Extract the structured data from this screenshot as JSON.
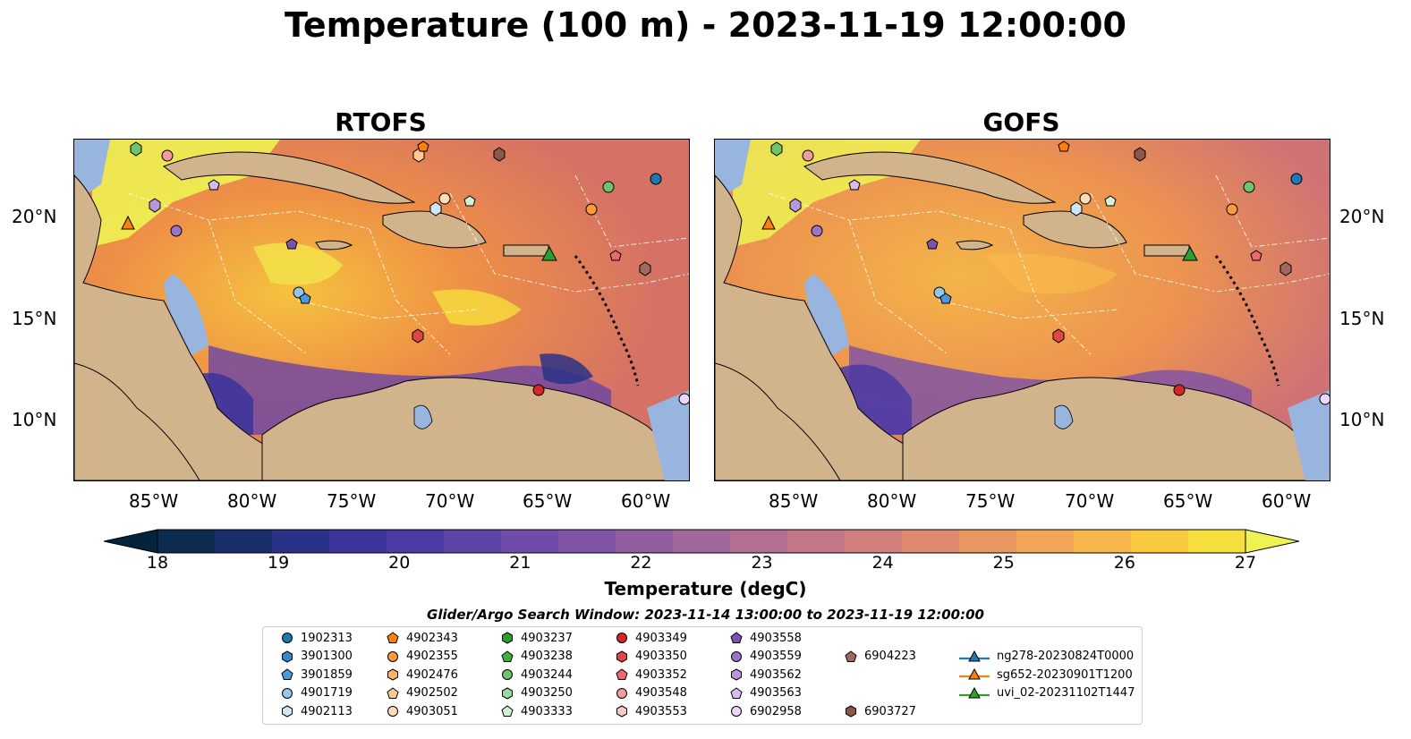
{
  "suptitle": "Temperature (100 m) - 2023-11-19 12:00:00",
  "panels": [
    {
      "title": "RTOFS"
    },
    {
      "title": "GOFS"
    }
  ],
  "lat_labels": [
    "20°N",
    "15°N",
    "10°N"
  ],
  "lon_labels": [
    "85°W",
    "80°W",
    "75°W",
    "70°W",
    "65°W",
    "60°W"
  ],
  "colorbar": {
    "label": "Temperature (degC)",
    "ticks": [
      "18",
      "19",
      "20",
      "21",
      "22",
      "23",
      "24",
      "25",
      "26",
      "27"
    ],
    "min": 18,
    "max": 27,
    "extend": "both",
    "colors": [
      "#03243a",
      "#0d2b4f",
      "#1a2f6a",
      "#2a3287",
      "#3b349b",
      "#4c3aa5",
      "#5e43a8",
      "#6f4ca8",
      "#8055a6",
      "#915ea1",
      "#a2679b",
      "#b36f93",
      "#c37789",
      "#d2807d",
      "#df8a70",
      "#ea9663",
      "#f2a556",
      "#f7b74a",
      "#f9ca40",
      "#f6de3c",
      "#eef252"
    ]
  },
  "legend": {
    "title": "Glider/Argo Search Window: 2023-11-14 13:00:00 to 2023-11-19 12:00:00",
    "entries": [
      {
        "label": "1902313",
        "marker": "circle",
        "color": "#1f77b4"
      },
      {
        "label": "3901300",
        "marker": "hexagon",
        "color": "#3a86c4"
      },
      {
        "label": "3901859",
        "marker": "pentagon",
        "color": "#4a9ad8"
      },
      {
        "label": "4901719",
        "marker": "circle",
        "color": "#95c5ea"
      },
      {
        "label": "4902113",
        "marker": "hexagon",
        "color": "#cfe6f7"
      },
      {
        "label": "4902343",
        "marker": "pentagon",
        "color": "#ff7f0e"
      },
      {
        "label": "4902355",
        "marker": "circle",
        "color": "#ff9a3c"
      },
      {
        "label": "4902476",
        "marker": "hexagon",
        "color": "#ffb36b"
      },
      {
        "label": "4902502",
        "marker": "pentagon",
        "color": "#ffc896"
      },
      {
        "label": "4903051",
        "marker": "circle",
        "color": "#ffdcb8"
      },
      {
        "label": "4903237",
        "marker": "hexagon",
        "color": "#2ca02c"
      },
      {
        "label": "4903238",
        "marker": "pentagon",
        "color": "#3eb03e"
      },
      {
        "label": "4903244",
        "marker": "circle",
        "color": "#6fc36f"
      },
      {
        "label": "4903250",
        "marker": "hexagon",
        "color": "#9bd89b"
      },
      {
        "label": "4903333",
        "marker": "pentagon",
        "color": "#d3f2d3"
      },
      {
        "label": "4903349",
        "marker": "circle",
        "color": "#d62728"
      },
      {
        "label": "4903350",
        "marker": "hexagon",
        "color": "#e04646"
      },
      {
        "label": "4903352",
        "marker": "pentagon",
        "color": "#ea6a6a"
      },
      {
        "label": "4903548",
        "marker": "circle",
        "color": "#f39b9b"
      },
      {
        "label": "4903553",
        "marker": "hexagon",
        "color": "#f9c7c7"
      },
      {
        "label": "4903558",
        "marker": "pentagon",
        "color": "#7b52b0"
      },
      {
        "label": "4903559",
        "marker": "circle",
        "color": "#9b74c9"
      },
      {
        "label": "4903562",
        "marker": "hexagon",
        "color": "#b995de"
      },
      {
        "label": "4903563",
        "marker": "pentagon",
        "color": "#d6baf0"
      },
      {
        "label": "6902958",
        "marker": "circle",
        "color": "#eed6fb"
      },
      {
        "label": "6903727",
        "marker": "hexagon",
        "color": "#8c564b"
      },
      {
        "label": "6904223",
        "marker": "pentagon",
        "color": "#a0695d"
      },
      {
        "label": "ng278-20230824T0000",
        "marker": "triangle",
        "color": "#1f77b4"
      },
      {
        "label": "sg652-20230901T1200",
        "marker": "triangle",
        "color": "#ff7f0e"
      },
      {
        "label": "uvi_02-20231102T1447",
        "marker": "triangle",
        "color": "#2ca02c"
      }
    ]
  }
}
